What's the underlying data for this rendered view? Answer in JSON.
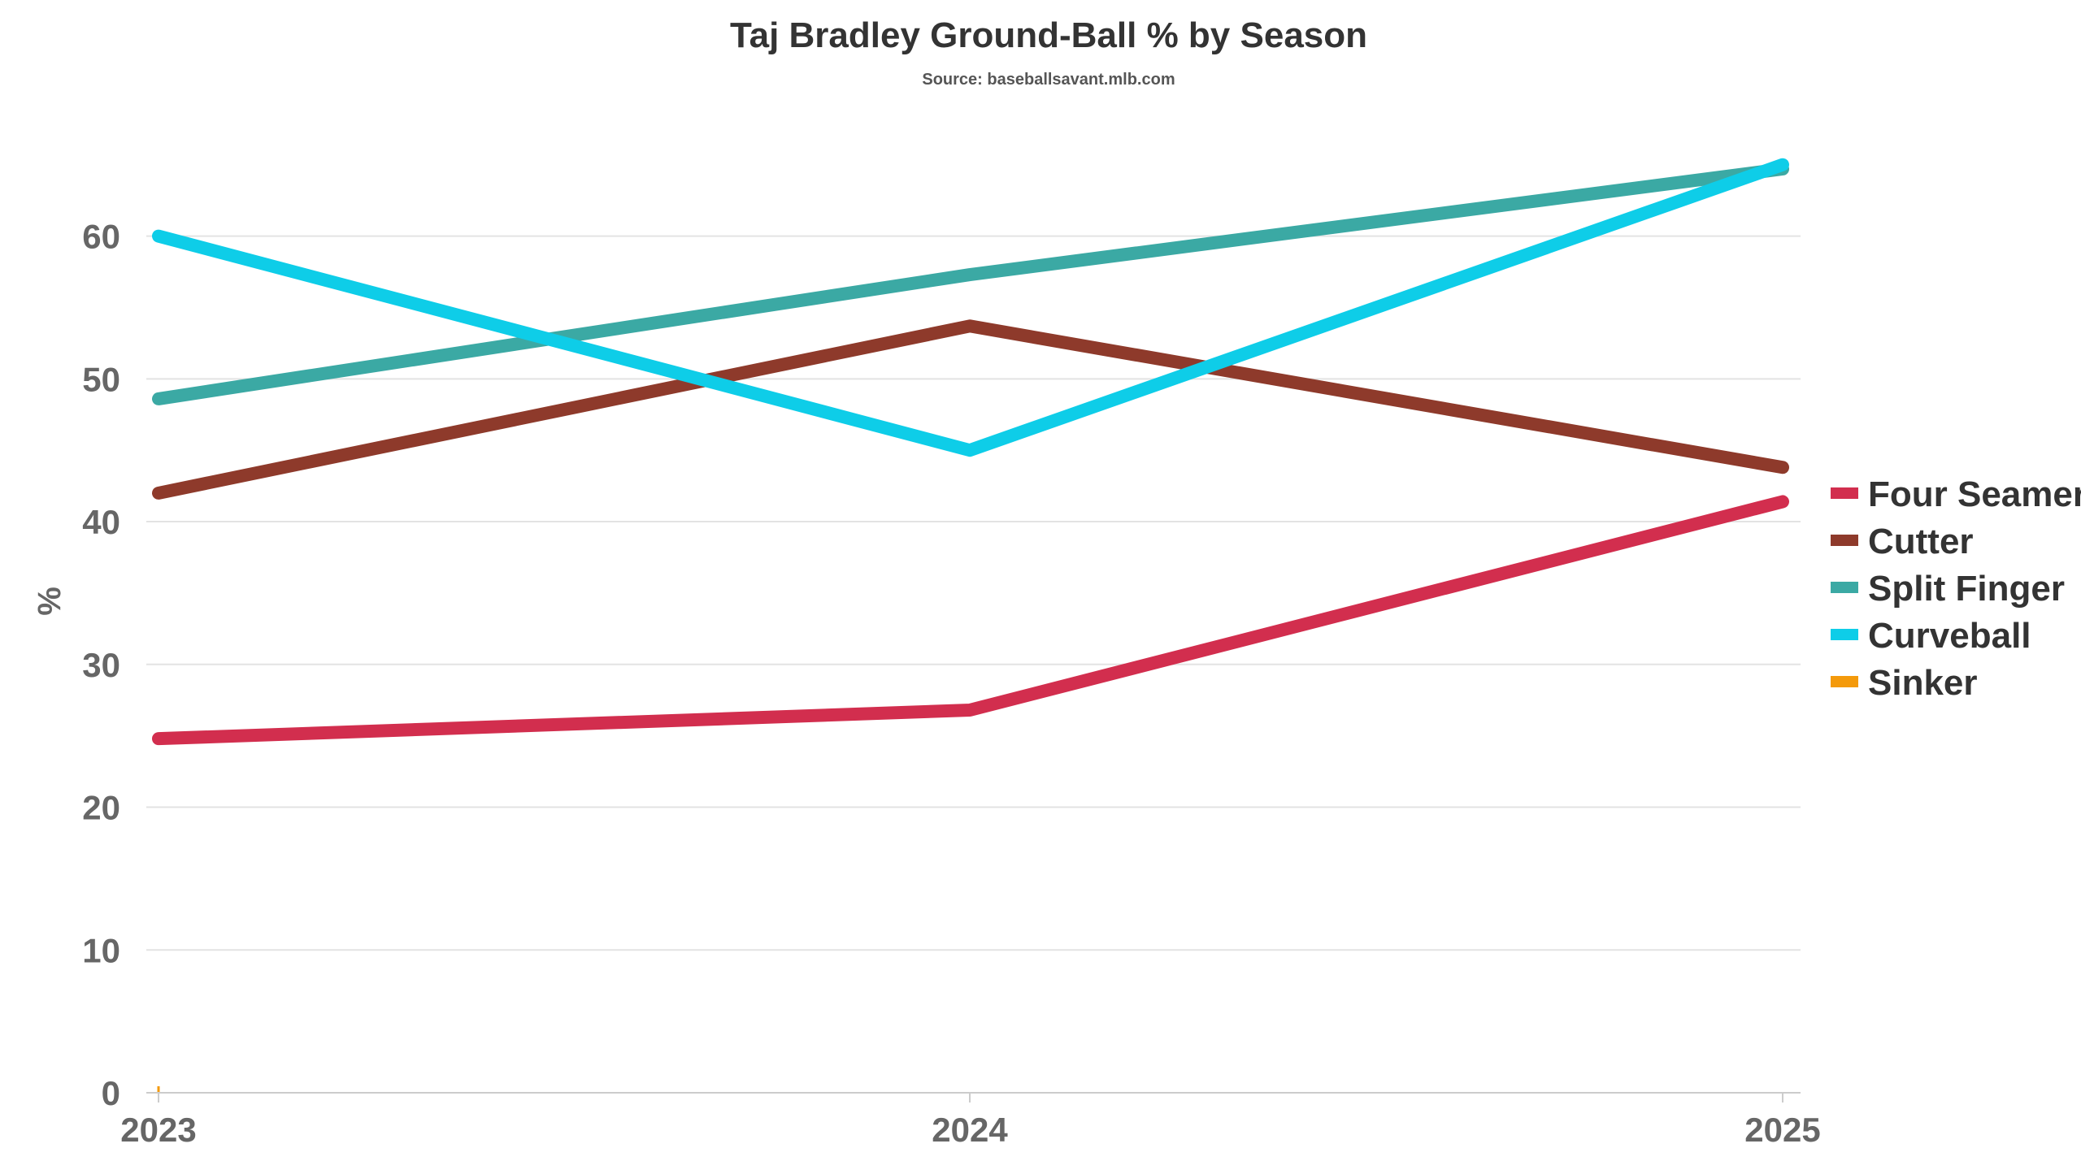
{
  "chart_data": {
    "type": "line",
    "title": "Taj Bradley Ground-Ball % by Season",
    "subtitle": "Source: baseballsavant.mlb.com",
    "xlabel": "",
    "ylabel": "%",
    "categories": [
      "2023",
      "2024",
      "2025"
    ],
    "y_ticks": [
      "0",
      "10",
      "20",
      "30",
      "40",
      "50",
      "60"
    ],
    "ylim": [
      0,
      68
    ],
    "grid": true,
    "legend_position": "right",
    "series": [
      {
        "name": "Four Seamer",
        "color": "#d22e4e",
        "values": [
          24.8,
          26.8,
          41.4
        ]
      },
      {
        "name": "Cutter",
        "color": "#8e3a2b",
        "values": [
          42.0,
          53.7,
          43.8
        ]
      },
      {
        "name": "Split Finger",
        "color": "#3ba9a4",
        "values": [
          48.6,
          57.3,
          64.7
        ]
      },
      {
        "name": "Curveball",
        "color": "#0ecde8",
        "values": [
          60.0,
          45.0,
          65.0
        ]
      },
      {
        "name": "Sinker",
        "color": "#f49a0b",
        "values": [
          0,
          null,
          null
        ]
      }
    ]
  }
}
